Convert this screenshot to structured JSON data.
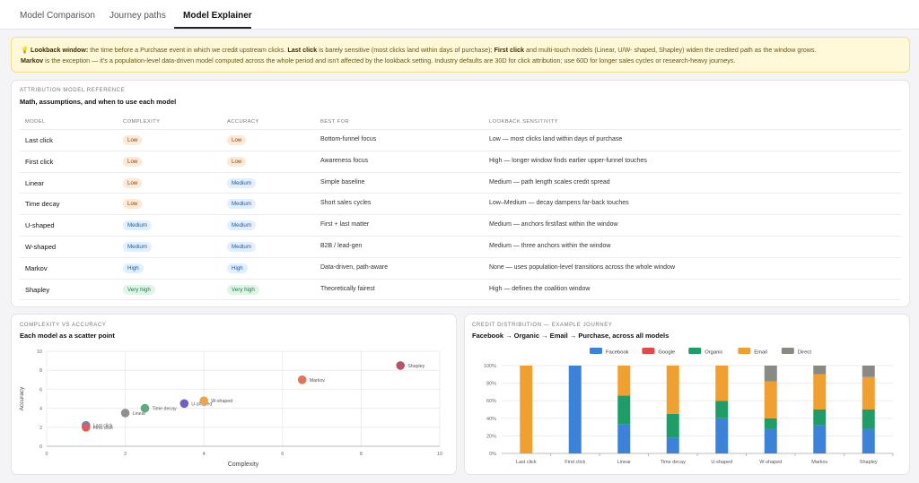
{
  "tabs": [
    {
      "label": "Model Comparison",
      "active": false
    },
    {
      "label": "Journey paths",
      "active": false
    },
    {
      "label": "Model Explainer",
      "active": true
    }
  ],
  "banner": {
    "icon": "lightbulb-icon",
    "lead": "Lookback window:",
    "t1": " the time before a Purchase event in which we credit upstream clicks. ",
    "b1": "Last click",
    "t2": " is barely sensitive (most clicks land within days of purchase); ",
    "b2": "First click",
    "t3": " and multi-touch models (Linear, U/W- shaped, Shapley) widen the credited path as the window grows.",
    "b3": "Markov",
    "t4": " is the exception — it's a population-level data-driven model computed across the whole period and isn't affected by the lookback setting. Industry defaults are 30D for click attribution; use 60D for longer sales cycles or research-heavy journeys."
  },
  "reference": {
    "kicker": "ATTRIBUTION MODEL REFERENCE",
    "title": "Math, assumptions, and when to use each model",
    "headers": {
      "model": "MODEL",
      "complexity": "COMPLEXITY",
      "accuracy": "ACCURACY",
      "best_for": "BEST FOR",
      "lookback": "LOOKBACK SENSITIVITY"
    },
    "rows": [
      {
        "model": "Last click",
        "complexity": "Low",
        "accuracy": "Low",
        "best_for": "Bottom-funnel focus",
        "lookback": "Low — most clicks land within days of purchase"
      },
      {
        "model": "First click",
        "complexity": "Low",
        "accuracy": "Low",
        "best_for": "Awareness focus",
        "lookback": "High — longer window finds earlier upper-funnel touches"
      },
      {
        "model": "Linear",
        "complexity": "Low",
        "accuracy": "Medium",
        "best_for": "Simple baseline",
        "lookback": "Medium — path length scales credit spread"
      },
      {
        "model": "Time decay",
        "complexity": "Low",
        "accuracy": "Medium",
        "best_for": "Short sales cycles",
        "lookback": "Low–Medium — decay dampens far-back touches"
      },
      {
        "model": "U-shaped",
        "complexity": "Medium",
        "accuracy": "Medium",
        "best_for": "First + last matter",
        "lookback": "Medium — anchors first/last within the window"
      },
      {
        "model": "W-shaped",
        "complexity": "Medium",
        "accuracy": "Medium",
        "best_for": "B2B / lead-gen",
        "lookback": "Medium — three anchors within the window"
      },
      {
        "model": "Markov",
        "complexity": "High",
        "accuracy": "High",
        "best_for": "Data-driven, path-aware",
        "lookback": "None — uses population-level transitions across the whole window"
      },
      {
        "model": "Shapley",
        "complexity": "Very high",
        "accuracy": "Very high",
        "best_for": "Theoretically fairest",
        "lookback": "High — defines the coalition window"
      }
    ]
  },
  "scatter_card": {
    "kicker": "COMPLEXITY VS ACCURACY",
    "title": "Each model as a scatter point"
  },
  "stack_card": {
    "kicker": "CREDIT DISTRIBUTION — EXAMPLE JOURNEY",
    "title": "Facebook → Organic → Email → Purchase, across all models"
  },
  "chart_data": [
    {
      "type": "scatter",
      "xlabel": "Complexity",
      "ylabel": "Accuracy",
      "xlim": [
        0,
        10
      ],
      "ylim": [
        0,
        10
      ],
      "xticks": [
        0,
        2,
        4,
        6,
        8,
        10
      ],
      "yticks": [
        0,
        2,
        4,
        6,
        8,
        10
      ],
      "grid": true,
      "points": [
        {
          "label": "Last click",
          "x": 1,
          "y": 2.2,
          "color": "#4e8fd6"
        },
        {
          "label": "First click",
          "x": 1,
          "y": 2.0,
          "color": "#e05b5b"
        },
        {
          "label": "Linear",
          "x": 2,
          "y": 3.5,
          "color": "#8f8f8f"
        },
        {
          "label": "Time decay",
          "x": 2.5,
          "y": 4.0,
          "color": "#5cab7d"
        },
        {
          "label": "U-shaped",
          "x": 3.5,
          "y": 4.5,
          "color": "#6d5fc7"
        },
        {
          "label": "W-shaped",
          "x": 4,
          "y": 4.8,
          "color": "#f0a445"
        },
        {
          "label": "Markov",
          "x": 6.5,
          "y": 7.0,
          "color": "#e0745a"
        },
        {
          "label": "Shapley",
          "x": 9,
          "y": 8.5,
          "color": "#b5536a"
        }
      ]
    },
    {
      "type": "bar",
      "stacked": true,
      "legend_position": "top",
      "categories": [
        "Last click",
        "First click",
        "Linear",
        "Time decay",
        "U-shaped",
        "W-shaped",
        "Markov",
        "Shapley"
      ],
      "yticks": [
        "0%",
        "20%",
        "40%",
        "60%",
        "80%",
        "100%"
      ],
      "ylim": [
        0,
        100
      ],
      "grid": true,
      "series": [
        {
          "name": "Facebook",
          "color": "#3b82d8",
          "values": [
            0,
            100,
            33,
            18,
            40,
            28,
            32,
            28
          ]
        },
        {
          "name": "Google",
          "color": "#df4b4b",
          "values": [
            0,
            0,
            0,
            0,
            0,
            0,
            0,
            0
          ]
        },
        {
          "name": "Organic",
          "color": "#1f9d68",
          "values": [
            0,
            0,
            33,
            27,
            20,
            12,
            18,
            22
          ]
        },
        {
          "name": "Email",
          "color": "#f0a030",
          "values": [
            100,
            0,
            34,
            55,
            40,
            42,
            40,
            37
          ]
        },
        {
          "name": "Direct",
          "color": "#8a8a84",
          "values": [
            0,
            0,
            0,
            0,
            0,
            18,
            10,
            13
          ]
        }
      ]
    }
  ]
}
